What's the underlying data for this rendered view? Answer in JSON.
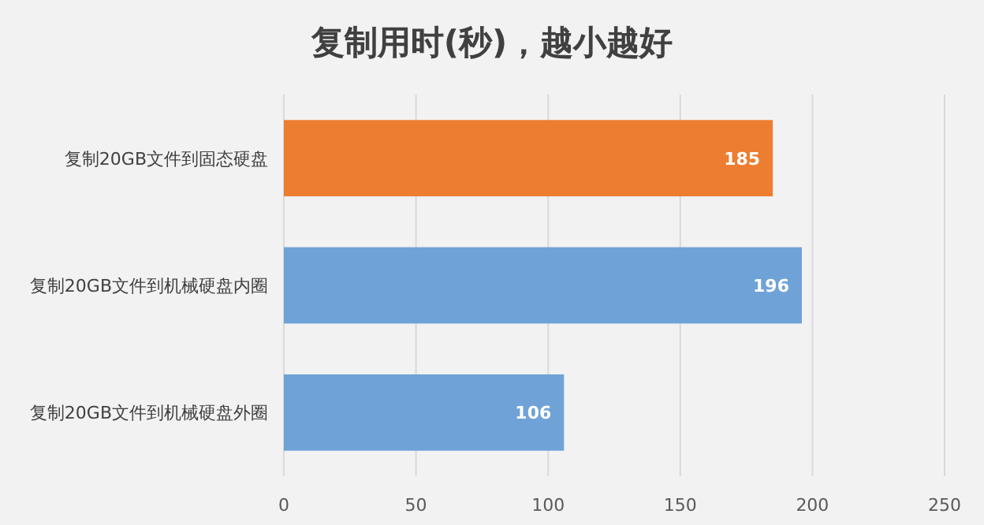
{
  "chart_data": {
    "type": "bar",
    "orientation": "horizontal",
    "title": "复制用时(秒)，越小越好",
    "categories": [
      "复制20GB文件到固态硬盘",
      "复制20GB文件到机械硬盘内圈",
      "复制20GB文件到机械硬盘外圈"
    ],
    "values": [
      185,
      196,
      106
    ],
    "colors": [
      "#ed7d31",
      "#6fa3d8",
      "#6fa3d8"
    ],
    "xlim": [
      0,
      250
    ],
    "xticks": [
      0,
      50,
      100,
      150,
      200,
      250
    ],
    "grid": "x",
    "data_labels": true
  }
}
